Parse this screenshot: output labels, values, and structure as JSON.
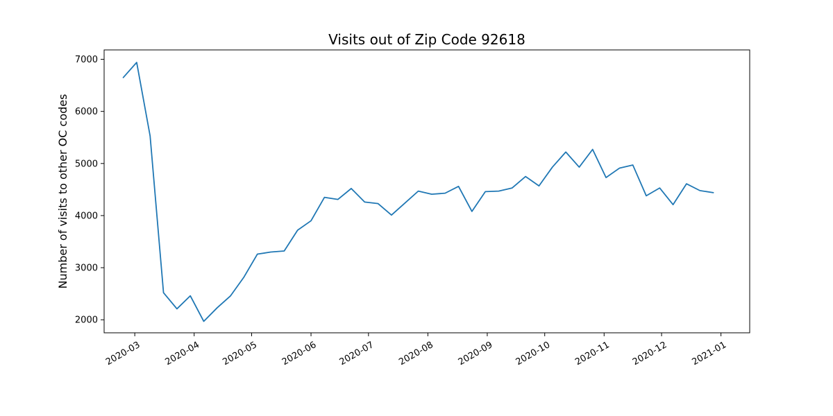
{
  "chart_data": {
    "type": "line",
    "title": "Visits out of Zip Code 92618",
    "xlabel": "",
    "ylabel": "Number of visits to other OC codes",
    "x_axis_type": "date",
    "xlim": [
      "2020-02-14",
      "2021-01-16"
    ],
    "ylim": [
      1750,
      7180
    ],
    "grid": false,
    "legend": "none",
    "x_ticks": [
      "2020-03-01",
      "2020-04-01",
      "2020-05-01",
      "2020-06-01",
      "2020-07-01",
      "2020-08-01",
      "2020-09-01",
      "2020-10-01",
      "2020-11-01",
      "2020-12-01",
      "2021-01-01"
    ],
    "x_tick_labels": [
      "2020-03",
      "2020-04",
      "2020-05",
      "2020-06",
      "2020-07",
      "2020-08",
      "2020-09",
      "2020-10",
      "2020-11",
      "2020-12",
      "2021-01"
    ],
    "y_ticks": [
      2000,
      3000,
      4000,
      5000,
      6000,
      7000
    ],
    "y_tick_labels": [
      "2000",
      "3000",
      "4000",
      "5000",
      "6000",
      "7000"
    ],
    "series": [
      {
        "color": "#1f77b4",
        "x": [
          "2020-02-24",
          "2020-03-02",
          "2020-03-09",
          "2020-03-16",
          "2020-03-23",
          "2020-03-30",
          "2020-04-06",
          "2020-04-13",
          "2020-04-20",
          "2020-04-27",
          "2020-05-04",
          "2020-05-11",
          "2020-05-18",
          "2020-05-25",
          "2020-06-01",
          "2020-06-08",
          "2020-06-15",
          "2020-06-22",
          "2020-06-29",
          "2020-07-06",
          "2020-07-13",
          "2020-07-20",
          "2020-07-27",
          "2020-08-03",
          "2020-08-10",
          "2020-08-17",
          "2020-08-24",
          "2020-08-31",
          "2020-09-07",
          "2020-09-14",
          "2020-09-21",
          "2020-09-28",
          "2020-10-05",
          "2020-10-12",
          "2020-10-19",
          "2020-10-26",
          "2020-11-02",
          "2020-11-09",
          "2020-11-16",
          "2020-11-23",
          "2020-11-30",
          "2020-12-07",
          "2020-12-14",
          "2020-12-21",
          "2020-12-28"
        ],
        "y": [
          6650,
          6940,
          5530,
          2520,
          2210,
          2460,
          1970,
          2230,
          2460,
          2820,
          3260,
          3300,
          3320,
          3720,
          3900,
          4350,
          4310,
          4520,
          4260,
          4230,
          4010,
          4240,
          4470,
          4410,
          4430,
          4560,
          4080,
          4460,
          4470,
          4530,
          4750,
          4570,
          4930,
          5220,
          4930,
          5270,
          4730,
          4910,
          4970,
          4380,
          4530,
          4210,
          4610,
          4480,
          4440
        ]
      }
    ]
  }
}
